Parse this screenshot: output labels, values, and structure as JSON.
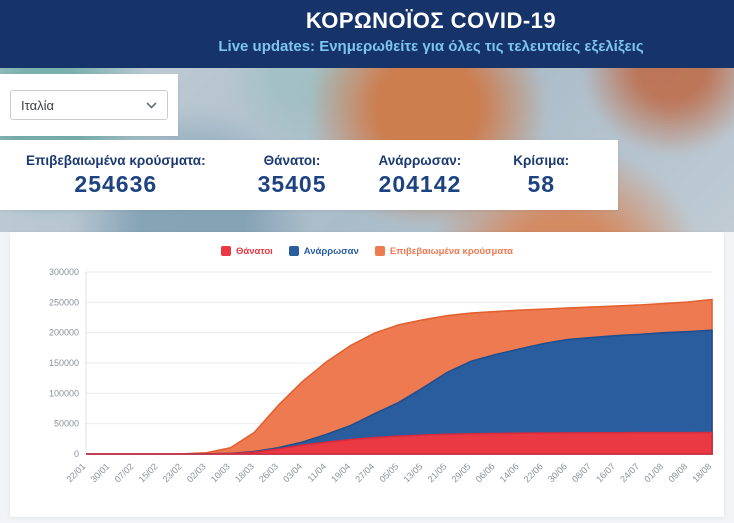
{
  "header": {
    "title": "ΚΟΡΩΝΟΪΟΣ COVID-19",
    "subtitle": "Live updates: Ενημερωθείτε για όλες τις τελευταίες εξελίξεις"
  },
  "country_select": {
    "value": "Ιταλία"
  },
  "stats": [
    {
      "label": "Επιβεβαιωμένα κρούσματα:",
      "value": "254636"
    },
    {
      "label": "Θάνατοι:",
      "value": "35405"
    },
    {
      "label": "Ανάρρωσαν:",
      "value": "204142"
    },
    {
      "label": "Κρίσιμα:",
      "value": "58"
    }
  ],
  "colors": {
    "header_bg": "#16346a",
    "subtitle_blue": "#7cc5ee",
    "stat_blue": "#1d4380",
    "deaths_red": "#ea3943",
    "recovered_blue": "#2a5d9e",
    "confirmed_orange": "#ee7a52"
  },
  "chart_data": {
    "type": "area",
    "x": [
      "22/01",
      "30/01",
      "07/02",
      "15/02",
      "23/02",
      "02/03",
      "10/03",
      "18/03",
      "26/03",
      "03/04",
      "11/04",
      "19/04",
      "27/04",
      "05/05",
      "13/05",
      "21/05",
      "29/05",
      "06/06",
      "14/06",
      "22/06",
      "30/06",
      "08/07",
      "16/07",
      "24/07",
      "01/08",
      "09/08",
      "18/08"
    ],
    "series": [
      {
        "name": "Θάνατοι",
        "color": "#ea3943",
        "stroke": "#d62c3f",
        "values": [
          0,
          0,
          0,
          0,
          3,
          52,
          631,
          2978,
          8215,
          14681,
          19468,
          23660,
          26977,
          29315,
          31106,
          32486,
          33340,
          33846,
          34301,
          34610,
          34767,
          34914,
          35017,
          35097,
          35146,
          35190,
          35405
        ]
      },
      {
        "name": "Ανάρρωσαν",
        "color": "#2a5d9e",
        "stroke": "#1f4f8f",
        "values": [
          0,
          0,
          0,
          0,
          0,
          149,
          1004,
          4025,
          10361,
          19758,
          32534,
          47055,
          66624,
          85231,
          109039,
          134560,
          152844,
          163781,
          173085,
          181907,
          188584,
          191944,
          194928,
          197162,
          199974,
          201642,
          204142
        ]
      },
      {
        "name": "Επιβεβαιωμένα κρούσματα",
        "color": "#ee7a52",
        "stroke": "#e3602f",
        "values": [
          0,
          0,
          3,
          3,
          155,
          2036,
          10149,
          35713,
          80589,
          119827,
          152271,
          178972,
          199414,
          213013,
          221216,
          228006,
          232248,
          234801,
          236989,
          238720,
          240436,
          242149,
          243736,
          245590,
          247832,
          250566,
          254636
        ]
      }
    ],
    "ylim": [
      0,
      300000
    ],
    "yticks": [
      0,
      50000,
      100000,
      150000,
      200000,
      250000,
      300000
    ],
    "legend_position": "top",
    "grid": true
  }
}
